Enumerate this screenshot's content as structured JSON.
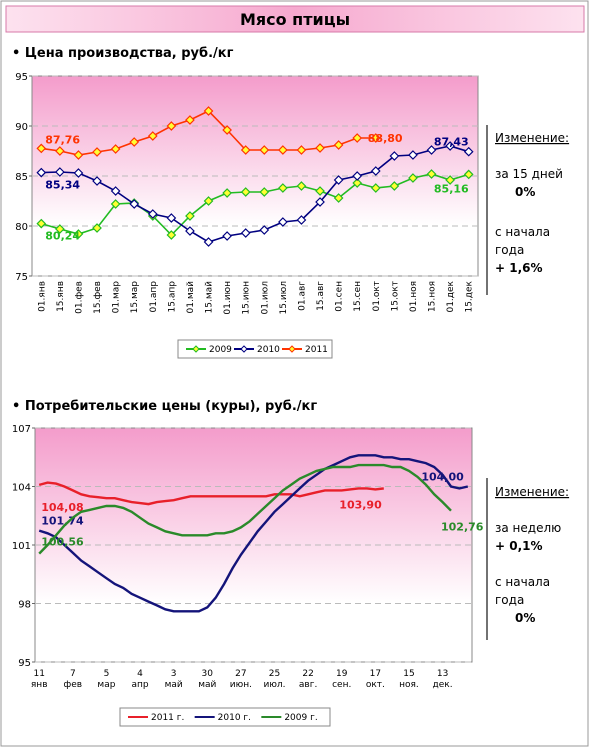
{
  "title": "Мясо птицы",
  "chart_data": [
    {
      "type": "line",
      "title": "• Цена производства, руб./кг",
      "categories": [
        "01.янв",
        "15.янв",
        "01.фев",
        "15.фев",
        "01.мар",
        "15.мар",
        "01.апр",
        "15.апр",
        "01.май",
        "15.май",
        "01.июн",
        "15.июн",
        "01.июл",
        "15.июл",
        "01.авг",
        "15.авг",
        "01.сен",
        "15.сен",
        "01.окт",
        "15.окт",
        "01.ноя",
        "15.ноя",
        "01.дек",
        "15.дек"
      ],
      "series": [
        {
          "name": "2009",
          "color": "#22bb22",
          "values": [
            80.24,
            79.7,
            79.2,
            79.8,
            82.2,
            82.3,
            81,
            79.1,
            81,
            82.5,
            83.3,
            83.4,
            83.4,
            83.8,
            84,
            83.5,
            82.8,
            84.3,
            83.8,
            84,
            84.8,
            85.2,
            84.6,
            85.16
          ],
          "value_labels": [
            "80,24",
            null,
            null,
            null,
            null,
            null,
            null,
            null,
            null,
            null,
            null,
            null,
            null,
            null,
            null,
            null,
            null,
            null,
            null,
            null,
            null,
            null,
            null,
            "85,16"
          ]
        },
        {
          "name": "2010",
          "color": "#000080",
          "values": [
            85.34,
            85.4,
            85.3,
            84.5,
            83.5,
            82.2,
            81.2,
            80.8,
            79.5,
            78.4,
            79,
            79.3,
            79.6,
            80.4,
            80.6,
            82.4,
            84.6,
            85,
            85.5,
            87,
            87.1,
            87.6,
            88,
            87.43
          ],
          "value_labels": [
            "85,34",
            null,
            null,
            null,
            null,
            null,
            null,
            null,
            null,
            null,
            null,
            null,
            null,
            null,
            null,
            null,
            null,
            null,
            null,
            null,
            null,
            null,
            null,
            "87,43"
          ]
        },
        {
          "name": "2011",
          "color": "#ff3300",
          "values": [
            87.76,
            87.5,
            87.1,
            87.4,
            87.7,
            88.4,
            89,
            90,
            90.6,
            91.5,
            89.6,
            87.6,
            87.6,
            87.6,
            87.6,
            87.8,
            88.1,
            88.8,
            88.8,
            null,
            null,
            null,
            null,
            null
          ],
          "value_labels": [
            "87,76",
            null,
            null,
            null,
            null,
            null,
            null,
            null,
            null,
            null,
            null,
            null,
            null,
            null,
            null,
            null,
            null,
            null,
            "88,80",
            null,
            null,
            null,
            null,
            null
          ]
        }
      ],
      "ylim": [
        75,
        95
      ],
      "yticks": [
        75,
        80,
        85,
        90,
        95
      ],
      "grid": true,
      "markers": true,
      "note": {
        "heading": "Изменение:",
        "lines": [
          "за 15 дней",
          "0%",
          "с начала",
          "года",
          "+ 1,6%"
        ]
      }
    },
    {
      "type": "line",
      "title": "• Потребительские цены (куры), руб./кг",
      "categories": [
        "11 янв",
        null,
        null,
        null,
        "7 фев",
        null,
        null,
        null,
        "5 мар",
        null,
        null,
        null,
        "4 апр",
        null,
        null,
        null,
        "3 май",
        null,
        null,
        null,
        "30 май",
        null,
        null,
        null,
        "27 июн.",
        null,
        null,
        null,
        "25 июл.",
        null,
        null,
        null,
        "22 авг.",
        null,
        null,
        null,
        "19 сен.",
        null,
        null,
        null,
        "17 окт.",
        null,
        null,
        null,
        "15 ноя.",
        null,
        null,
        null,
        "13 дек.",
        null,
        null,
        null
      ],
      "series": [
        {
          "name": "2011 г.",
          "color": "#e8202a",
          "values": [
            104.08,
            104.2,
            104.15,
            104.0,
            103.8,
            103.6,
            103.5,
            103.45,
            103.4,
            103.4,
            103.3,
            103.2,
            103.15,
            103.1,
            103.2,
            103.25,
            103.3,
            103.4,
            103.5,
            103.5,
            103.5,
            103.5,
            103.5,
            103.5,
            103.5,
            103.5,
            103.5,
            103.5,
            103.6,
            103.6,
            103.6,
            103.5,
            103.6,
            103.7,
            103.8,
            103.8,
            103.8,
            103.85,
            103.9,
            103.9,
            103.85,
            103.9,
            null,
            null,
            null,
            null,
            null,
            null,
            null,
            null,
            null,
            null
          ],
          "value_labels": [
            "104,08",
            null,
            null,
            null,
            null,
            null,
            null,
            null,
            null,
            null,
            null,
            null,
            null,
            null,
            null,
            null,
            null,
            null,
            null,
            null,
            null,
            null,
            null,
            null,
            null,
            null,
            null,
            null,
            null,
            null,
            null,
            null,
            null,
            null,
            null,
            null,
            null,
            null,
            null,
            null,
            null,
            "103,90",
            null,
            null,
            null,
            null,
            null,
            null,
            null,
            null,
            null,
            null
          ]
        },
        {
          "name": "2010 г.",
          "color": "#14147a",
          "values": [
            101.74,
            101.6,
            101.4,
            101.0,
            100.6,
            100.2,
            99.9,
            99.6,
            99.3,
            99.0,
            98.8,
            98.5,
            98.3,
            98.1,
            97.9,
            97.7,
            97.6,
            97.6,
            97.6,
            97.6,
            97.8,
            98.3,
            99.0,
            99.8,
            100.5,
            101.1,
            101.7,
            102.2,
            102.7,
            103.1,
            103.5,
            103.9,
            104.3,
            104.6,
            104.9,
            105.1,
            105.3,
            105.5,
            105.6,
            105.6,
            105.6,
            105.5,
            105.5,
            105.4,
            105.4,
            105.3,
            105.2,
            105.0,
            104.6,
            104.0,
            103.9,
            104.0
          ],
          "value_labels": [
            "101,74",
            null,
            null,
            null,
            null,
            null,
            null,
            null,
            null,
            null,
            null,
            null,
            null,
            null,
            null,
            null,
            null,
            null,
            null,
            null,
            null,
            null,
            null,
            null,
            null,
            null,
            null,
            null,
            null,
            null,
            null,
            null,
            null,
            null,
            null,
            null,
            null,
            null,
            null,
            null,
            null,
            null,
            null,
            null,
            null,
            null,
            null,
            null,
            null,
            null,
            null,
            "104,00"
          ]
        },
        {
          "name": "2009 г.",
          "color": "#2a8a2a",
          "values": [
            100.56,
            101.0,
            101.5,
            102.0,
            102.4,
            102.7,
            102.8,
            102.9,
            103.0,
            103.0,
            102.9,
            102.7,
            102.4,
            102.1,
            101.9,
            101.7,
            101.6,
            101.5,
            101.5,
            101.5,
            101.5,
            101.6,
            101.6,
            101.7,
            101.9,
            102.2,
            102.6,
            103.0,
            103.4,
            103.8,
            104.1,
            104.4,
            104.6,
            104.8,
            104.9,
            105.0,
            105.0,
            105.0,
            105.1,
            105.1,
            105.1,
            105.1,
            105.0,
            105.0,
            104.8,
            104.5,
            104.1,
            103.6,
            103.2,
            102.76,
            null,
            null
          ],
          "value_labels": [
            "100,56",
            null,
            null,
            null,
            null,
            null,
            null,
            null,
            null,
            null,
            null,
            null,
            null,
            null,
            null,
            null,
            null,
            null,
            null,
            null,
            null,
            null,
            null,
            null,
            null,
            null,
            null,
            null,
            null,
            null,
            null,
            null,
            null,
            null,
            null,
            null,
            null,
            null,
            null,
            null,
            null,
            null,
            null,
            null,
            null,
            null,
            null,
            null,
            null,
            "102,76",
            null,
            null
          ]
        }
      ],
      "ylim": [
        95,
        107
      ],
      "yticks": [
        95,
        98,
        101,
        104,
        107
      ],
      "grid": true,
      "markers": false,
      "note": {
        "heading": "Изменение:",
        "lines": [
          "за неделю",
          "+ 0,1%",
          "с начала",
          "года",
          "0%"
        ]
      }
    }
  ]
}
